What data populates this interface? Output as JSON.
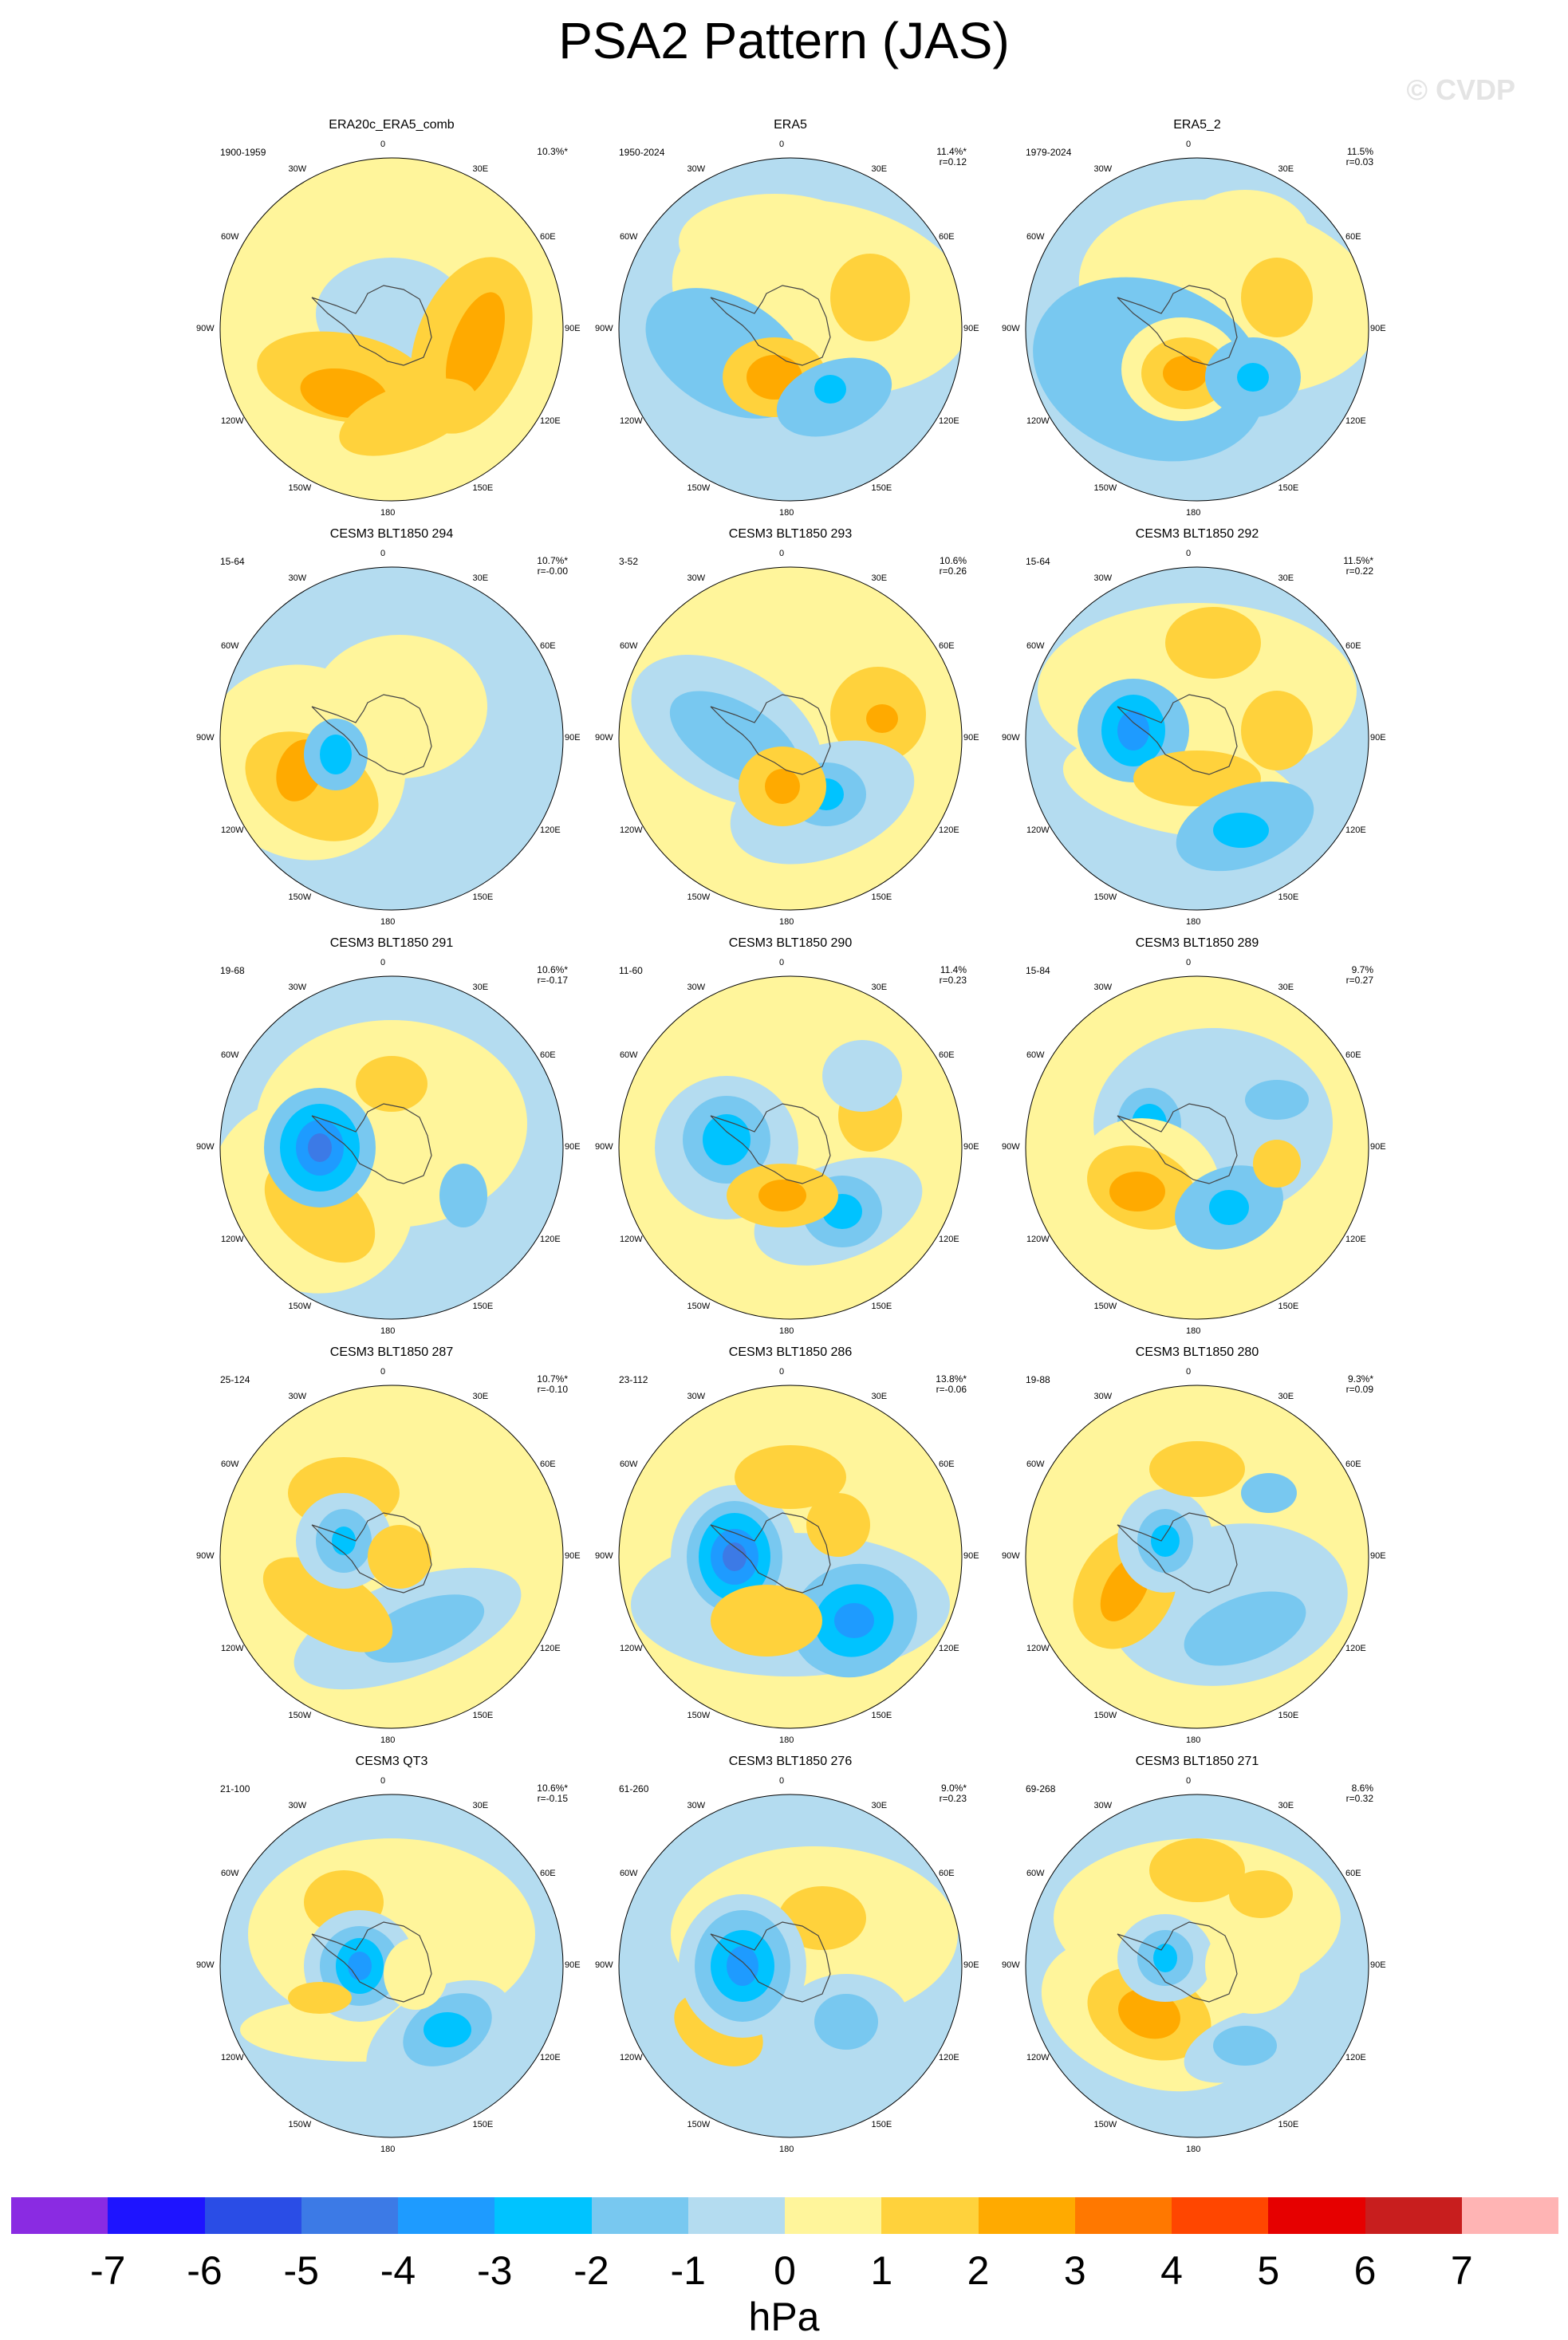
{
  "title": "PSA2 Pattern (JAS)",
  "watermark": "© CVDP",
  "lon_labels": [
    "0",
    "30E",
    "60E",
    "90E",
    "120E",
    "150E",
    "180",
    "150W",
    "120W",
    "90W",
    "60W",
    "30W"
  ],
  "panels": [
    {
      "title": "ERA20c_ERA5_comb",
      "range": "1900-1959",
      "pct": "10.3%*",
      "r": "",
      "pattern": "a"
    },
    {
      "title": "ERA5",
      "range": "1950-2024",
      "pct": "11.4%*",
      "r": "r=0.12",
      "pattern": "b"
    },
    {
      "title": "ERA5_2",
      "range": "1979-2024",
      "pct": "11.5%",
      "r": "r=0.03",
      "pattern": "c"
    },
    {
      "title": "CESM3 BLT1850 294",
      "range": "15-64",
      "pct": "10.7%*",
      "r": "r=-0.00",
      "pattern": "d"
    },
    {
      "title": "CESM3 BLT1850 293",
      "range": "3-52",
      "pct": "10.6%",
      "r": "r=0.26",
      "pattern": "e"
    },
    {
      "title": "CESM3 BLT1850 292",
      "range": "15-64",
      "pct": "11.5%*",
      "r": "r=0.22",
      "pattern": "f"
    },
    {
      "title": "CESM3 BLT1850 291",
      "range": "19-68",
      "pct": "10.6%*",
      "r": "r=-0.17",
      "pattern": "g"
    },
    {
      "title": "CESM3 BLT1850 290",
      "range": "11-60",
      "pct": "11.4%",
      "r": "r=0.23",
      "pattern": "h"
    },
    {
      "title": "CESM3 BLT1850 289",
      "range": "15-84",
      "pct": "9.7%",
      "r": "r=0.27",
      "pattern": "i"
    },
    {
      "title": "CESM3 BLT1850 287",
      "range": "25-124",
      "pct": "10.7%*",
      "r": "r=-0.10",
      "pattern": "j"
    },
    {
      "title": "CESM3 BLT1850 286",
      "range": "23-112",
      "pct": "13.8%*",
      "r": "r=-0.06",
      "pattern": "k"
    },
    {
      "title": "CESM3 BLT1850 280",
      "range": "19-88",
      "pct": "9.3%*",
      "r": "r=0.09",
      "pattern": "l"
    },
    {
      "title": "CESM3 QT3",
      "range": "21-100",
      "pct": "10.6%*",
      "r": "r=-0.15",
      "pattern": "m"
    },
    {
      "title": "CESM3 BLT1850 276",
      "range": "61-260",
      "pct": "9.0%*",
      "r": "r=0.23",
      "pattern": "n"
    },
    {
      "title": "CESM3 BLT1850 271",
      "range": "69-268",
      "pct": "8.6%",
      "r": "r=0.32",
      "pattern": "o"
    }
  ],
  "colorbar": {
    "unit": "hPa",
    "ticks": [
      "-7",
      "-6",
      "-5",
      "-4",
      "-3",
      "-2",
      "-1",
      "0",
      "1",
      "2",
      "3",
      "4",
      "5",
      "6",
      "7"
    ],
    "colors": [
      "#8a2be2",
      "#1e14ff",
      "#2a4de6",
      "#3c7ae6",
      "#1e9bff",
      "#00c3ff",
      "#78c8f0",
      "#b4dcf0",
      "#fff59b",
      "#ffd23c",
      "#ffaa00",
      "#ff7800",
      "#ff4600",
      "#e60000",
      "#c81e1e",
      "#ffb4b4"
    ]
  },
  "levels": {
    "neg1": "#b4dcf0",
    "neg2": "#78c8f0",
    "neg3": "#00c3ff",
    "neg4": "#1e9bff",
    "neg5": "#3c7ae6",
    "pos1": "#fff59b",
    "pos2": "#ffd23c",
    "pos3": "#ffaa00",
    "pos4": "#ff7800"
  }
}
